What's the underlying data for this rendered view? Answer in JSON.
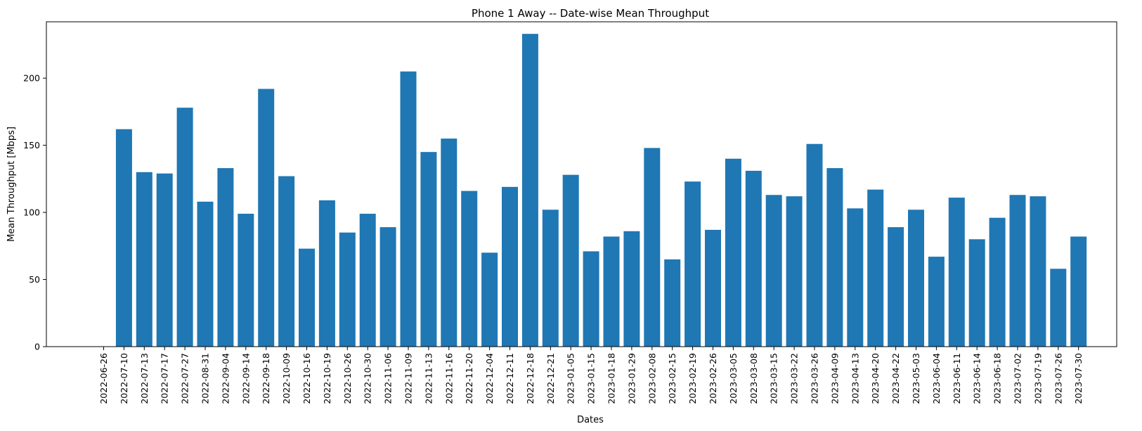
{
  "chart_data": {
    "type": "bar",
    "title": "Phone 1 Away -- Date-wise Mean Throughput",
    "xlabel": "Dates",
    "ylabel": "Mean Throughput [Mbps]",
    "ylim": [
      0,
      242
    ],
    "yticks": [
      0,
      50,
      100,
      150,
      200
    ],
    "grid": false,
    "bar_color": "#1f77b4",
    "categories": [
      "2022-06-26",
      "2022-07-10",
      "2022-07-13",
      "2022-07-17",
      "2022-07-27",
      "2022-08-31",
      "2022-09-04",
      "2022-09-14",
      "2022-09-18",
      "2022-10-09",
      "2022-10-16",
      "2022-10-19",
      "2022-10-26",
      "2022-10-30",
      "2022-11-06",
      "2022-11-09",
      "2022-11-13",
      "2022-11-16",
      "2022-11-20",
      "2022-12-04",
      "2022-12-11",
      "2022-12-18",
      "2022-12-21",
      "2023-01-05",
      "2023-01-15",
      "2023-01-18",
      "2023-01-29",
      "2023-02-08",
      "2023-02-15",
      "2023-02-19",
      "2023-02-26",
      "2023-03-05",
      "2023-03-08",
      "2023-03-15",
      "2023-03-22",
      "2023-03-26",
      "2023-04-09",
      "2023-04-13",
      "2023-04-20",
      "2023-04-22",
      "2023-05-03",
      "2023-06-04",
      "2023-06-11",
      "2023-06-14",
      "2023-06-18",
      "2023-07-02",
      "2023-07-19",
      "2023-07-26",
      "2023-07-30"
    ],
    "values": [
      0,
      162,
      130,
      129,
      178,
      108,
      133,
      99,
      192,
      127,
      73,
      109,
      85,
      99,
      89,
      205,
      145,
      155,
      116,
      70,
      119,
      233,
      102,
      128,
      71,
      82,
      86,
      148,
      65,
      123,
      87,
      140,
      131,
      113,
      112,
      151,
      133,
      103,
      117,
      89,
      102,
      67,
      111,
      80,
      96,
      113,
      112,
      58,
      82
    ]
  }
}
